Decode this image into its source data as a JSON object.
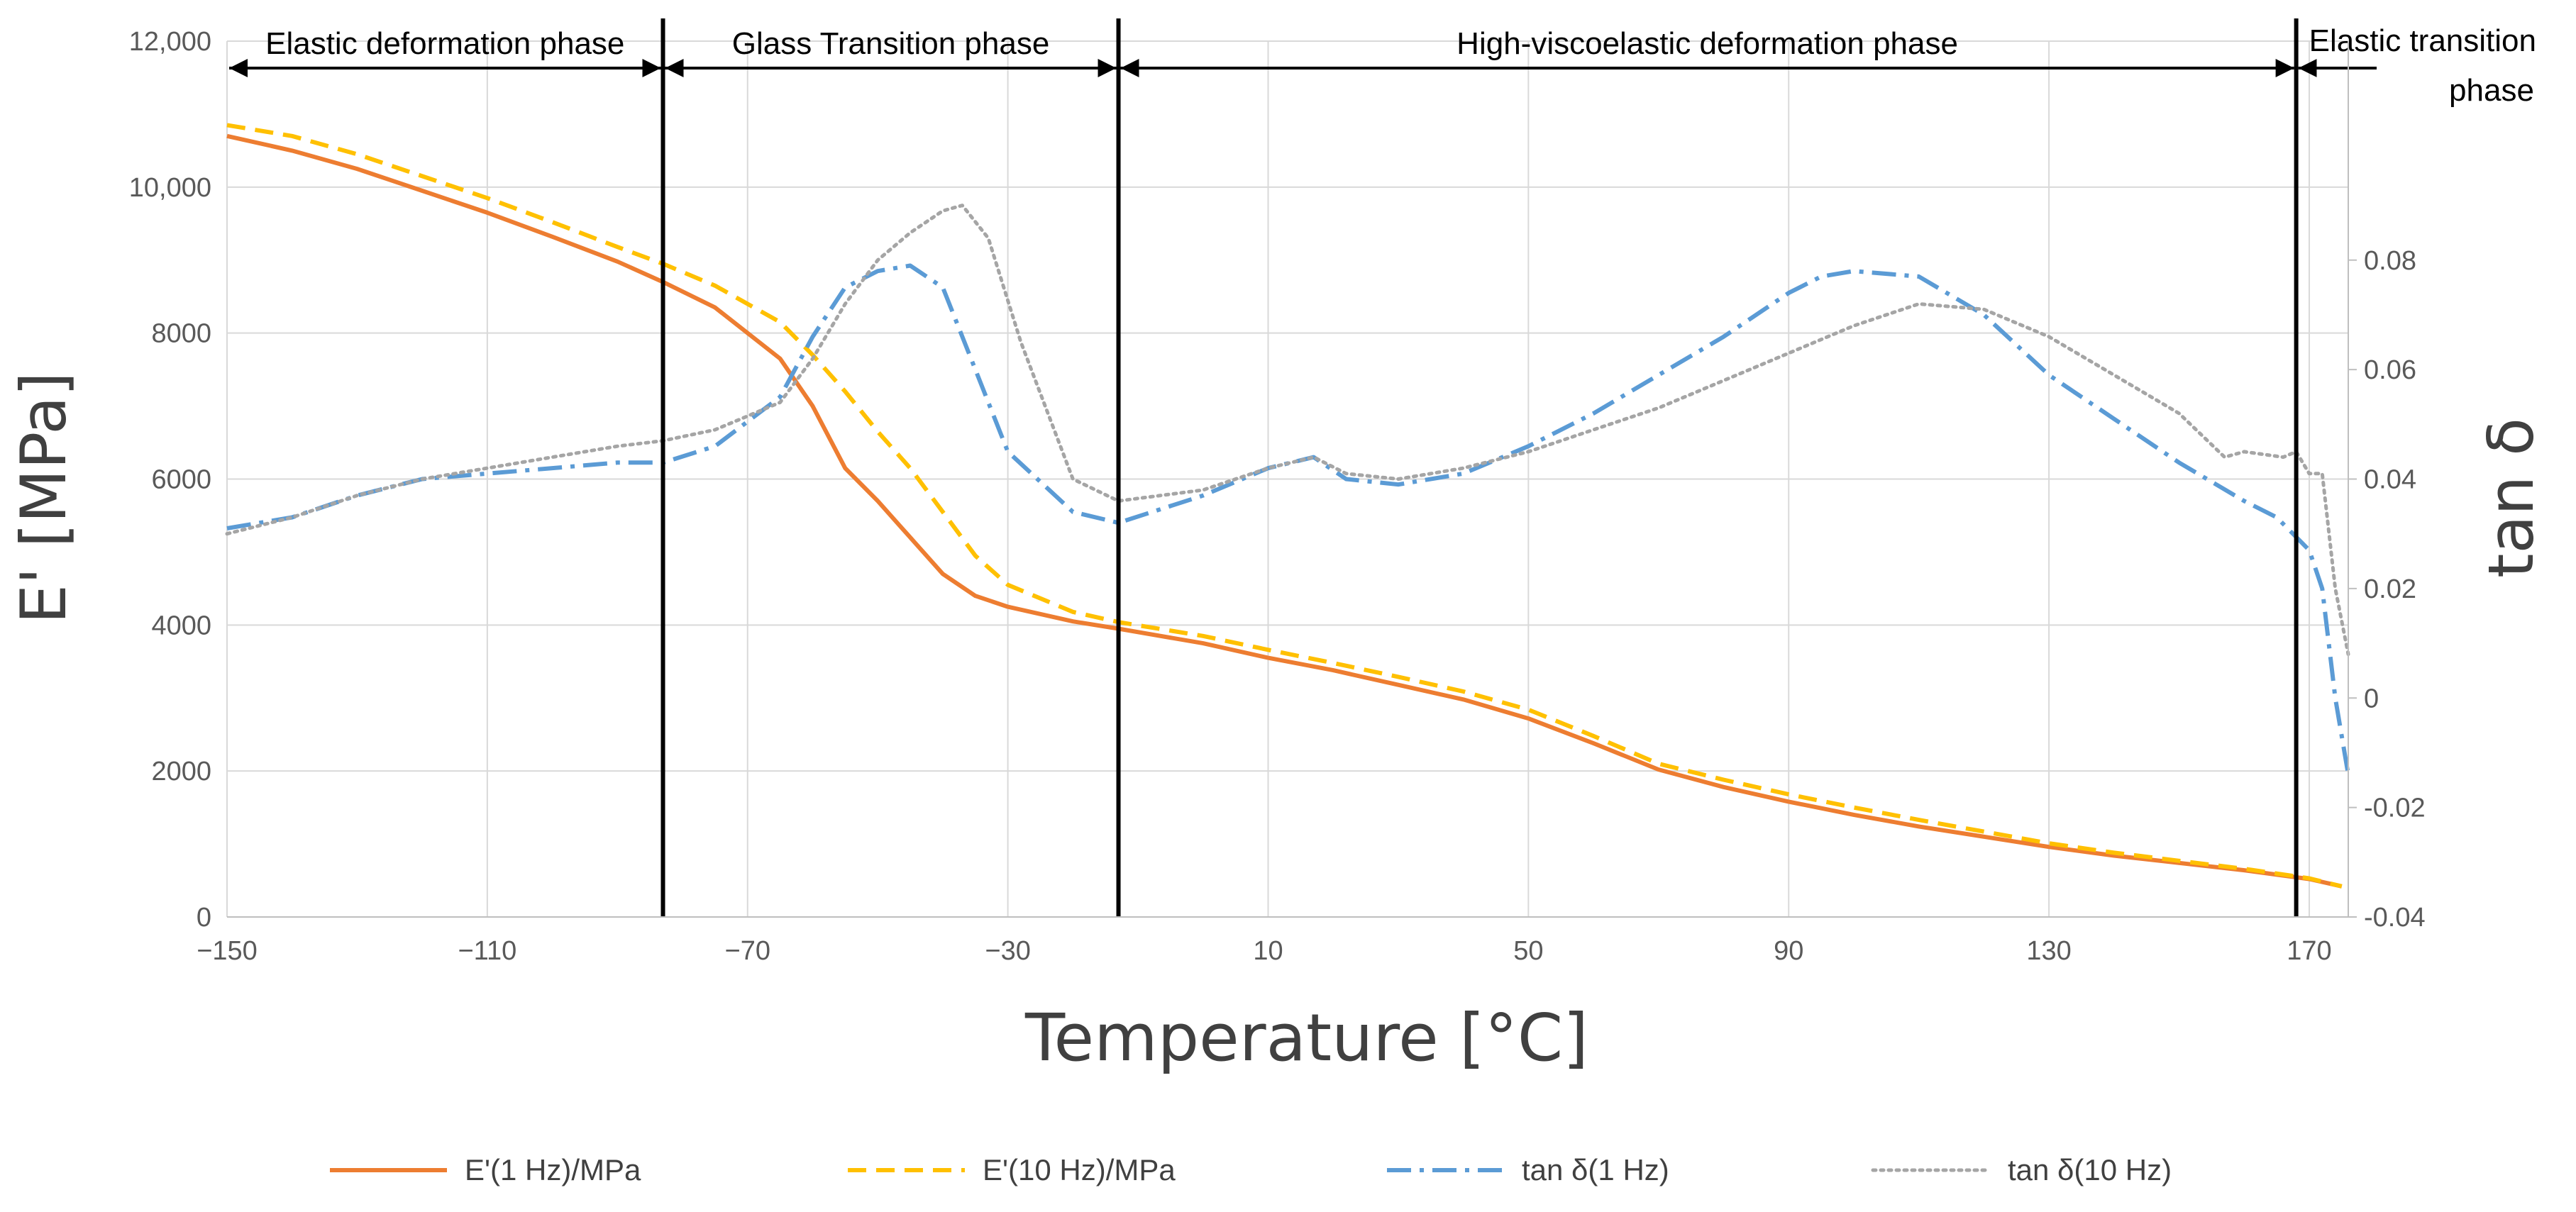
{
  "chart_data": {
    "type": "line",
    "xlabel": "Temperature [°C]",
    "ylabel": "E' [MPa]",
    "y2label": "tan δ",
    "xlim": [
      -150,
      176
    ],
    "ylim": [
      0,
      12000
    ],
    "y2lim": [
      -0.04,
      0.12
    ],
    "x_ticks": [
      -150,
      -110,
      -70,
      -30,
      10,
      50,
      90,
      130,
      170
    ],
    "x_tick_labels": [
      "−150",
      "−110",
      "−70",
      "−30",
      "10",
      "50",
      "90",
      "130",
      "170"
    ],
    "y_ticks": [
      0,
      2000,
      4000,
      6000,
      8000,
      10000,
      12000
    ],
    "y_tick_labels": [
      "0",
      "2000",
      "4000",
      "6000",
      "8000",
      "10,000",
      "12,000"
    ],
    "y2_ticks": [
      -0.04,
      -0.02,
      0,
      0.02,
      0.04,
      0.06,
      0.08
    ],
    "y2_tick_labels": [
      "-0.04",
      "-0.02",
      "0",
      "0.02",
      "0.04",
      "0.06",
      "0.08"
    ],
    "grid": true,
    "legend_position": "bottom",
    "phase_boundaries": [
      -83,
      -13,
      168
    ],
    "phases": [
      {
        "label": "Elastic deformation phase",
        "from": -150,
        "to": -83
      },
      {
        "label": "Glass Transition phase",
        "from": -83,
        "to": -13
      },
      {
        "label": "High-viscoelastic deformation phase",
        "from": -13,
        "to": 168
      },
      {
        "label": "Elastic transition",
        "label2": "phase",
        "from": 168,
        "to": 176
      }
    ],
    "series": [
      {
        "name": "E'(1 Hz)/MPa",
        "axis": "left",
        "color": "#ED7D31",
        "dash": "solid",
        "x": [
          -150,
          -140,
          -130,
          -120,
          -110,
          -100,
          -90,
          -83,
          -75,
          -65,
          -60,
          -55,
          -50,
          -45,
          -40,
          -35,
          -30,
          -20,
          -13,
          0,
          10,
          20,
          30,
          40,
          50,
          60,
          70,
          80,
          90,
          100,
          110,
          120,
          130,
          140,
          150,
          160,
          170,
          175
        ],
        "y": [
          10700,
          10500,
          10250,
          9950,
          9650,
          9320,
          8980,
          8700,
          8350,
          7650,
          7000,
          6150,
          5700,
          5200,
          4700,
          4400,
          4250,
          4050,
          3950,
          3750,
          3550,
          3380,
          3180,
          2980,
          2720,
          2380,
          2020,
          1780,
          1580,
          1400,
          1240,
          1100,
          960,
          840,
          740,
          640,
          520,
          420
        ]
      },
      {
        "name": "E'(10 Hz)/MPa",
        "axis": "left",
        "color": "#FFC000",
        "dash": "dashed",
        "x": [
          -150,
          -140,
          -130,
          -120,
          -110,
          -100,
          -90,
          -83,
          -75,
          -65,
          -60,
          -55,
          -50,
          -45,
          -40,
          -35,
          -30,
          -20,
          -13,
          0,
          10,
          20,
          30,
          40,
          50,
          60,
          70,
          80,
          90,
          100,
          110,
          120,
          130,
          140,
          150,
          160,
          170,
          175
        ],
        "y": [
          10850,
          10700,
          10450,
          10150,
          9850,
          9520,
          9180,
          8950,
          8650,
          8150,
          7700,
          7200,
          6650,
          6150,
          5550,
          4950,
          4550,
          4180,
          4040,
          3850,
          3660,
          3480,
          3290,
          3090,
          2840,
          2480,
          2100,
          1880,
          1680,
          1500,
          1330,
          1170,
          1010,
          880,
          770,
          660,
          530,
          420
        ]
      },
      {
        "name": "tan δ(1 Hz)",
        "axis": "right",
        "color": "#5B9BD5",
        "dash": "dashdot",
        "x": [
          -150,
          -140,
          -130,
          -120,
          -110,
          -100,
          -90,
          -83,
          -75,
          -65,
          -60,
          -55,
          -50,
          -45,
          -40,
          -35,
          -30,
          -20,
          -13,
          0,
          10,
          17,
          22,
          30,
          40,
          50,
          60,
          70,
          80,
          90,
          95,
          100,
          110,
          120,
          130,
          140,
          150,
          160,
          165,
          170,
          172,
          174,
          176
        ],
        "y": [
          0.031,
          0.033,
          0.037,
          0.04,
          0.041,
          0.042,
          0.043,
          0.043,
          0.046,
          0.055,
          0.066,
          0.075,
          0.078,
          0.079,
          0.075,
          0.06,
          0.045,
          0.034,
          0.032,
          0.037,
          0.042,
          0.044,
          0.04,
          0.039,
          0.041,
          0.046,
          0.052,
          0.059,
          0.066,
          0.074,
          0.077,
          0.078,
          0.077,
          0.07,
          0.059,
          0.051,
          0.043,
          0.036,
          0.033,
          0.027,
          0.02,
          0.0,
          -0.014
        ]
      },
      {
        "name": "tan δ(10 Hz)",
        "axis": "right",
        "color": "#A5A5A5",
        "dash": "dotted",
        "x": [
          -150,
          -140,
          -130,
          -120,
          -110,
          -100,
          -90,
          -83,
          -75,
          -65,
          -60,
          -55,
          -50,
          -45,
          -40,
          -37,
          -33,
          -28,
          -20,
          -13,
          0,
          10,
          17,
          22,
          30,
          40,
          50,
          60,
          70,
          80,
          90,
          100,
          110,
          120,
          130,
          140,
          150,
          157,
          160,
          166,
          168,
          170,
          172,
          174,
          176
        ],
        "y": [
          0.03,
          0.033,
          0.037,
          0.04,
          0.042,
          0.044,
          0.046,
          0.047,
          0.049,
          0.054,
          0.062,
          0.072,
          0.08,
          0.085,
          0.089,
          0.09,
          0.084,
          0.065,
          0.04,
          0.036,
          0.038,
          0.042,
          0.044,
          0.041,
          0.04,
          0.042,
          0.045,
          0.049,
          0.053,
          0.058,
          0.063,
          0.068,
          0.072,
          0.071,
          0.066,
          0.059,
          0.052,
          0.044,
          0.045,
          0.044,
          0.045,
          0.041,
          0.041,
          0.02,
          0.008
        ]
      }
    ]
  }
}
